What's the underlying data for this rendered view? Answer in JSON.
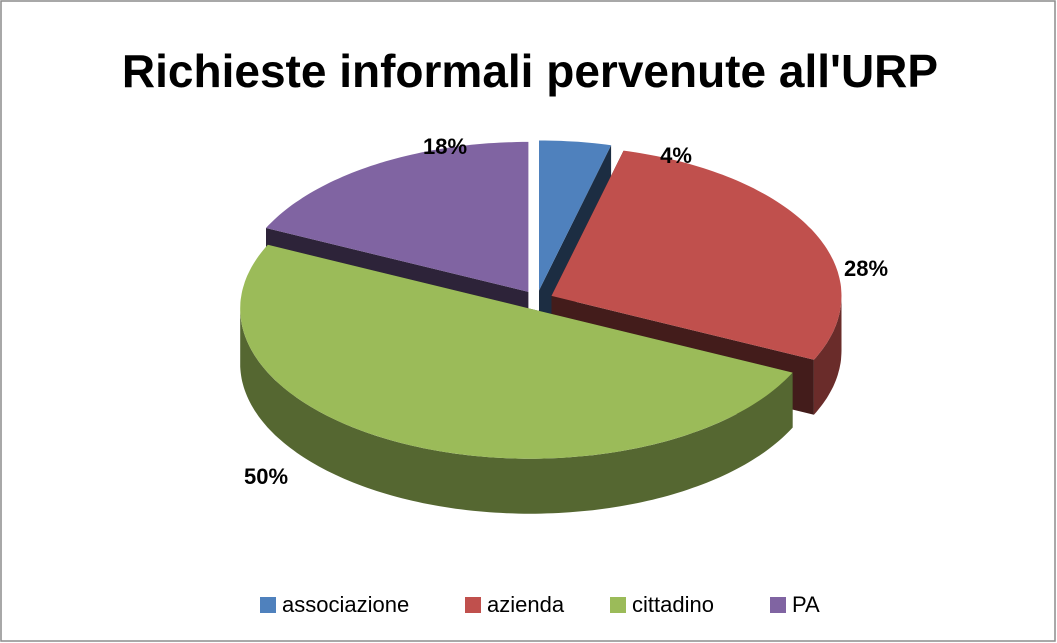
{
  "chart_data": {
    "type": "pie3d",
    "title": "Richieste informali pervenute all'URP",
    "categories": [
      "associazione",
      "azienda",
      "cittadino",
      "PA"
    ],
    "values": [
      4,
      28,
      50,
      18
    ],
    "value_labels": [
      "4%",
      "28%",
      "50%",
      "18%"
    ],
    "colors": [
      "#4f81bd",
      "#c0504d",
      "#9bbb59",
      "#8064a2"
    ],
    "legend": "bottom"
  }
}
